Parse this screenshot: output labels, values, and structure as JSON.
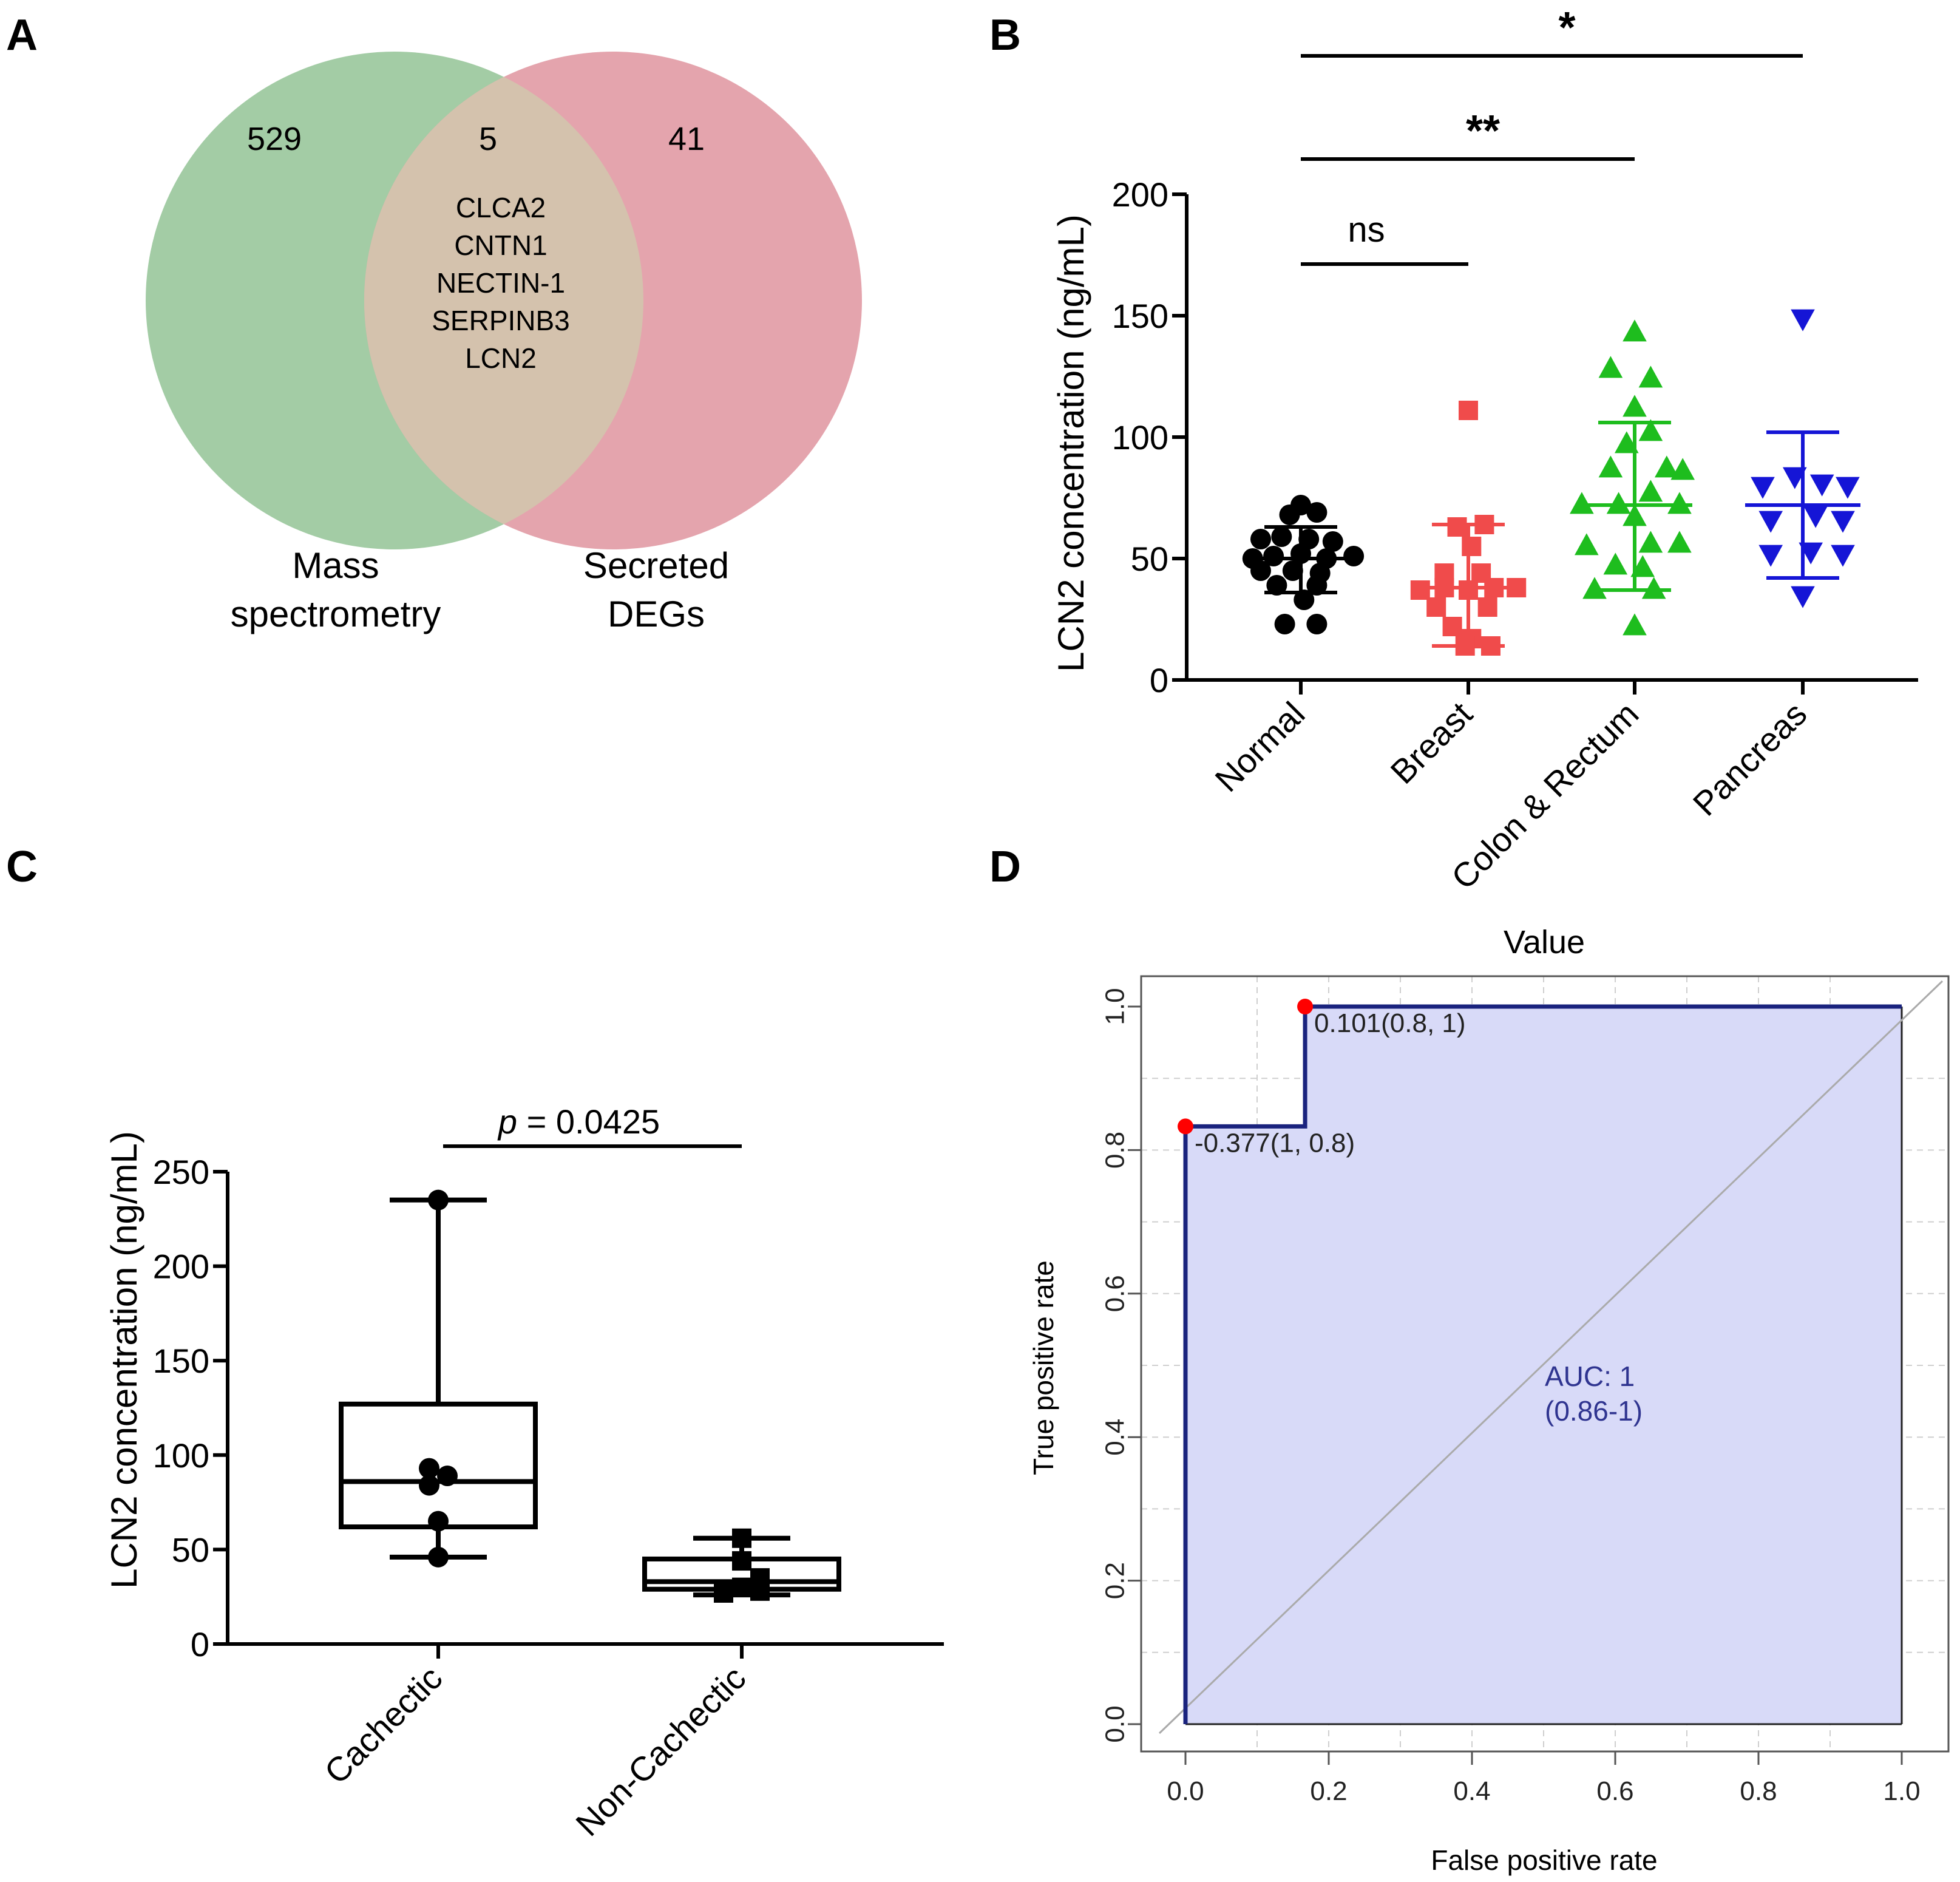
{
  "panels": {
    "A": "A",
    "B": "B",
    "C": "C",
    "D": "D"
  },
  "colors": {
    "venn_left": "#a3cca5",
    "venn_right": "#e4a4ad",
    "venn_overlap": "#d4c2ad",
    "normal": "#000000",
    "breast": "#f04b4b",
    "colon": "#1ebd1e",
    "pancreas": "#1515d6",
    "roc_fill": "#d8daf8",
    "roc_line": "#1a237e",
    "roc_point": "#ff0000",
    "auc_text": "#2f3490"
  },
  "chart_data": [
    {
      "panel": "A",
      "type": "venn",
      "sets": [
        {
          "name": "Mass spectrometry",
          "label_lines": [
            "Mass",
            "spectrometry"
          ],
          "unique_count": "529"
        },
        {
          "name": "Secreted DEGs",
          "label_lines": [
            "Secreted",
            "DEGs"
          ],
          "unique_count": "41"
        }
      ],
      "intersection_count": "5",
      "intersection_items": [
        "CLCA2",
        "CNTN1",
        "NECTIN-1",
        "SERPINB3",
        "LCN2"
      ]
    },
    {
      "panel": "B",
      "type": "scatter",
      "ylabel": "LCN2 concentration (ng/mL)",
      "ylim": [
        0,
        200
      ],
      "yticks": [
        0,
        50,
        100,
        150,
        200
      ],
      "categories": [
        "Normal",
        "Breast",
        "Colon & Rectum",
        "Pancreas"
      ],
      "series": [
        {
          "name": "Normal",
          "marker": "circle",
          "color": "#000000",
          "mean": 50,
          "sd_low": 36,
          "sd_high": 63,
          "points": [
            [
              0,
              72
            ],
            [
              -0.07,
              68
            ],
            [
              0.1,
              69
            ],
            [
              -0.25,
              58
            ],
            [
              -0.12,
              59
            ],
            [
              0.05,
              58
            ],
            [
              0.2,
              57
            ],
            [
              -0.3,
              50
            ],
            [
              -0.17,
              51
            ],
            [
              0,
              52
            ],
            [
              0.16,
              50
            ],
            [
              0.33,
              51
            ],
            [
              -0.25,
              45
            ],
            [
              -0.05,
              45
            ],
            [
              0.12,
              44
            ],
            [
              -0.15,
              39
            ],
            [
              0.1,
              39
            ],
            [
              0.02,
              33
            ],
            [
              -0.1,
              23
            ],
            [
              0.1,
              23
            ]
          ]
        },
        {
          "name": "Breast",
          "marker": "square",
          "color": "#f04b4b",
          "mean": 38,
          "sd_low": 14,
          "sd_high": 64,
          "points": [
            [
              0,
              111
            ],
            [
              -0.07,
              63
            ],
            [
              0.1,
              64
            ],
            [
              0.02,
              55
            ],
            [
              -0.15,
              44
            ],
            [
              0.08,
              44
            ],
            [
              -0.3,
              37
            ],
            [
              -0.15,
              38
            ],
            [
              0,
              37
            ],
            [
              0.16,
              38
            ],
            [
              0.3,
              38
            ],
            [
              -0.2,
              30
            ],
            [
              0.12,
              30
            ],
            [
              -0.1,
              22
            ],
            [
              0.02,
              17
            ],
            [
              -0.02,
              14
            ],
            [
              0.14,
              14
            ]
          ]
        },
        {
          "name": "Colon & Rectum",
          "marker": "triangle-up",
          "color": "#1ebd1e",
          "mean": 72,
          "sd_low": 37,
          "sd_high": 106,
          "points": [
            [
              0,
              143
            ],
            [
              -0.15,
              128
            ],
            [
              0.1,
              124
            ],
            [
              0,
              112
            ],
            [
              0.1,
              102
            ],
            [
              -0.05,
              97
            ],
            [
              -0.15,
              87
            ],
            [
              0.2,
              87
            ],
            [
              0.3,
              86
            ],
            [
              0.1,
              77
            ],
            [
              -0.33,
              72
            ],
            [
              -0.1,
              72
            ],
            [
              0.28,
              72
            ],
            [
              0,
              67
            ],
            [
              -0.3,
              55
            ],
            [
              0.1,
              56
            ],
            [
              0.28,
              56
            ],
            [
              -0.12,
              47
            ],
            [
              0.05,
              46
            ],
            [
              -0.25,
              37
            ],
            [
              0.12,
              37
            ],
            [
              0,
              22
            ]
          ]
        },
        {
          "name": "Pancreas",
          "marker": "triangle-down",
          "color": "#1515d6",
          "mean": 72,
          "sd_low": 42,
          "sd_high": 102,
          "points": [
            [
              0,
              149
            ],
            [
              -0.25,
              80
            ],
            [
              -0.05,
              84
            ],
            [
              0.12,
              81
            ],
            [
              0.28,
              80
            ],
            [
              -0.2,
              66
            ],
            [
              0.08,
              68
            ],
            [
              0.25,
              66
            ],
            [
              -0.2,
              52
            ],
            [
              0.05,
              53
            ],
            [
              0.25,
              52
            ],
            [
              0,
              35
            ]
          ]
        }
      ],
      "comparisons": [
        {
          "from": "Normal",
          "to": "Breast",
          "label": "ns"
        },
        {
          "from": "Normal",
          "to": "Colon & Rectum",
          "label": "**"
        },
        {
          "from": "Normal",
          "to": "Pancreas",
          "label": "*"
        }
      ]
    },
    {
      "panel": "C",
      "type": "box",
      "ylabel": "LCN2 concentration (ng/mL)",
      "ylim": [
        0,
        250
      ],
      "yticks": [
        0,
        50,
        100,
        150,
        200,
        250
      ],
      "categories": [
        "Cachectic",
        "Non-Cachectic"
      ],
      "boxes": [
        {
          "name": "Cachectic",
          "min": 46,
          "q1": 62,
          "median": 86,
          "q3": 127,
          "max": 235,
          "points": [
            [
              0,
              235
            ],
            [
              -0.06,
              93
            ],
            [
              0.06,
              89
            ],
            [
              -0.06,
              84
            ],
            [
              0,
              65
            ],
            [
              0,
              46
            ]
          ]
        },
        {
          "name": "Non-Cachectic",
          "min": 26,
          "q1": 29,
          "median": 33,
          "q3": 45,
          "max": 56,
          "points": [
            [
              0,
              56
            ],
            [
              0,
              44
            ],
            [
              0.12,
              35
            ],
            [
              -0.12,
              27
            ],
            [
              0.12,
              28
            ],
            [
              0,
              30
            ]
          ]
        }
      ],
      "annotation": {
        "p_label": "p",
        "p_value": " = 0.0425"
      }
    },
    {
      "panel": "D",
      "type": "line",
      "title": "Value",
      "xlabel": "False positive rate",
      "ylabel": "True positive rate",
      "xlim": [
        0,
        1
      ],
      "ylim": [
        0,
        1
      ],
      "ticks": [
        "0.0",
        "0.2",
        "0.4",
        "0.6",
        "0.8",
        "1.0"
      ],
      "roc": [
        [
          0,
          0
        ],
        [
          0,
          0.833
        ],
        [
          0.167,
          0.833
        ],
        [
          0.167,
          1
        ],
        [
          1,
          1
        ]
      ],
      "highlight_points": [
        {
          "x": 0,
          "y": 0.833,
          "label": "-0.377(1, 0.8)"
        },
        {
          "x": 0.167,
          "y": 1,
          "label": "0.101(0.8, 1)"
        }
      ],
      "auc_lines": [
        "AUC: 1",
        "(0.86-1)"
      ]
    }
  ]
}
